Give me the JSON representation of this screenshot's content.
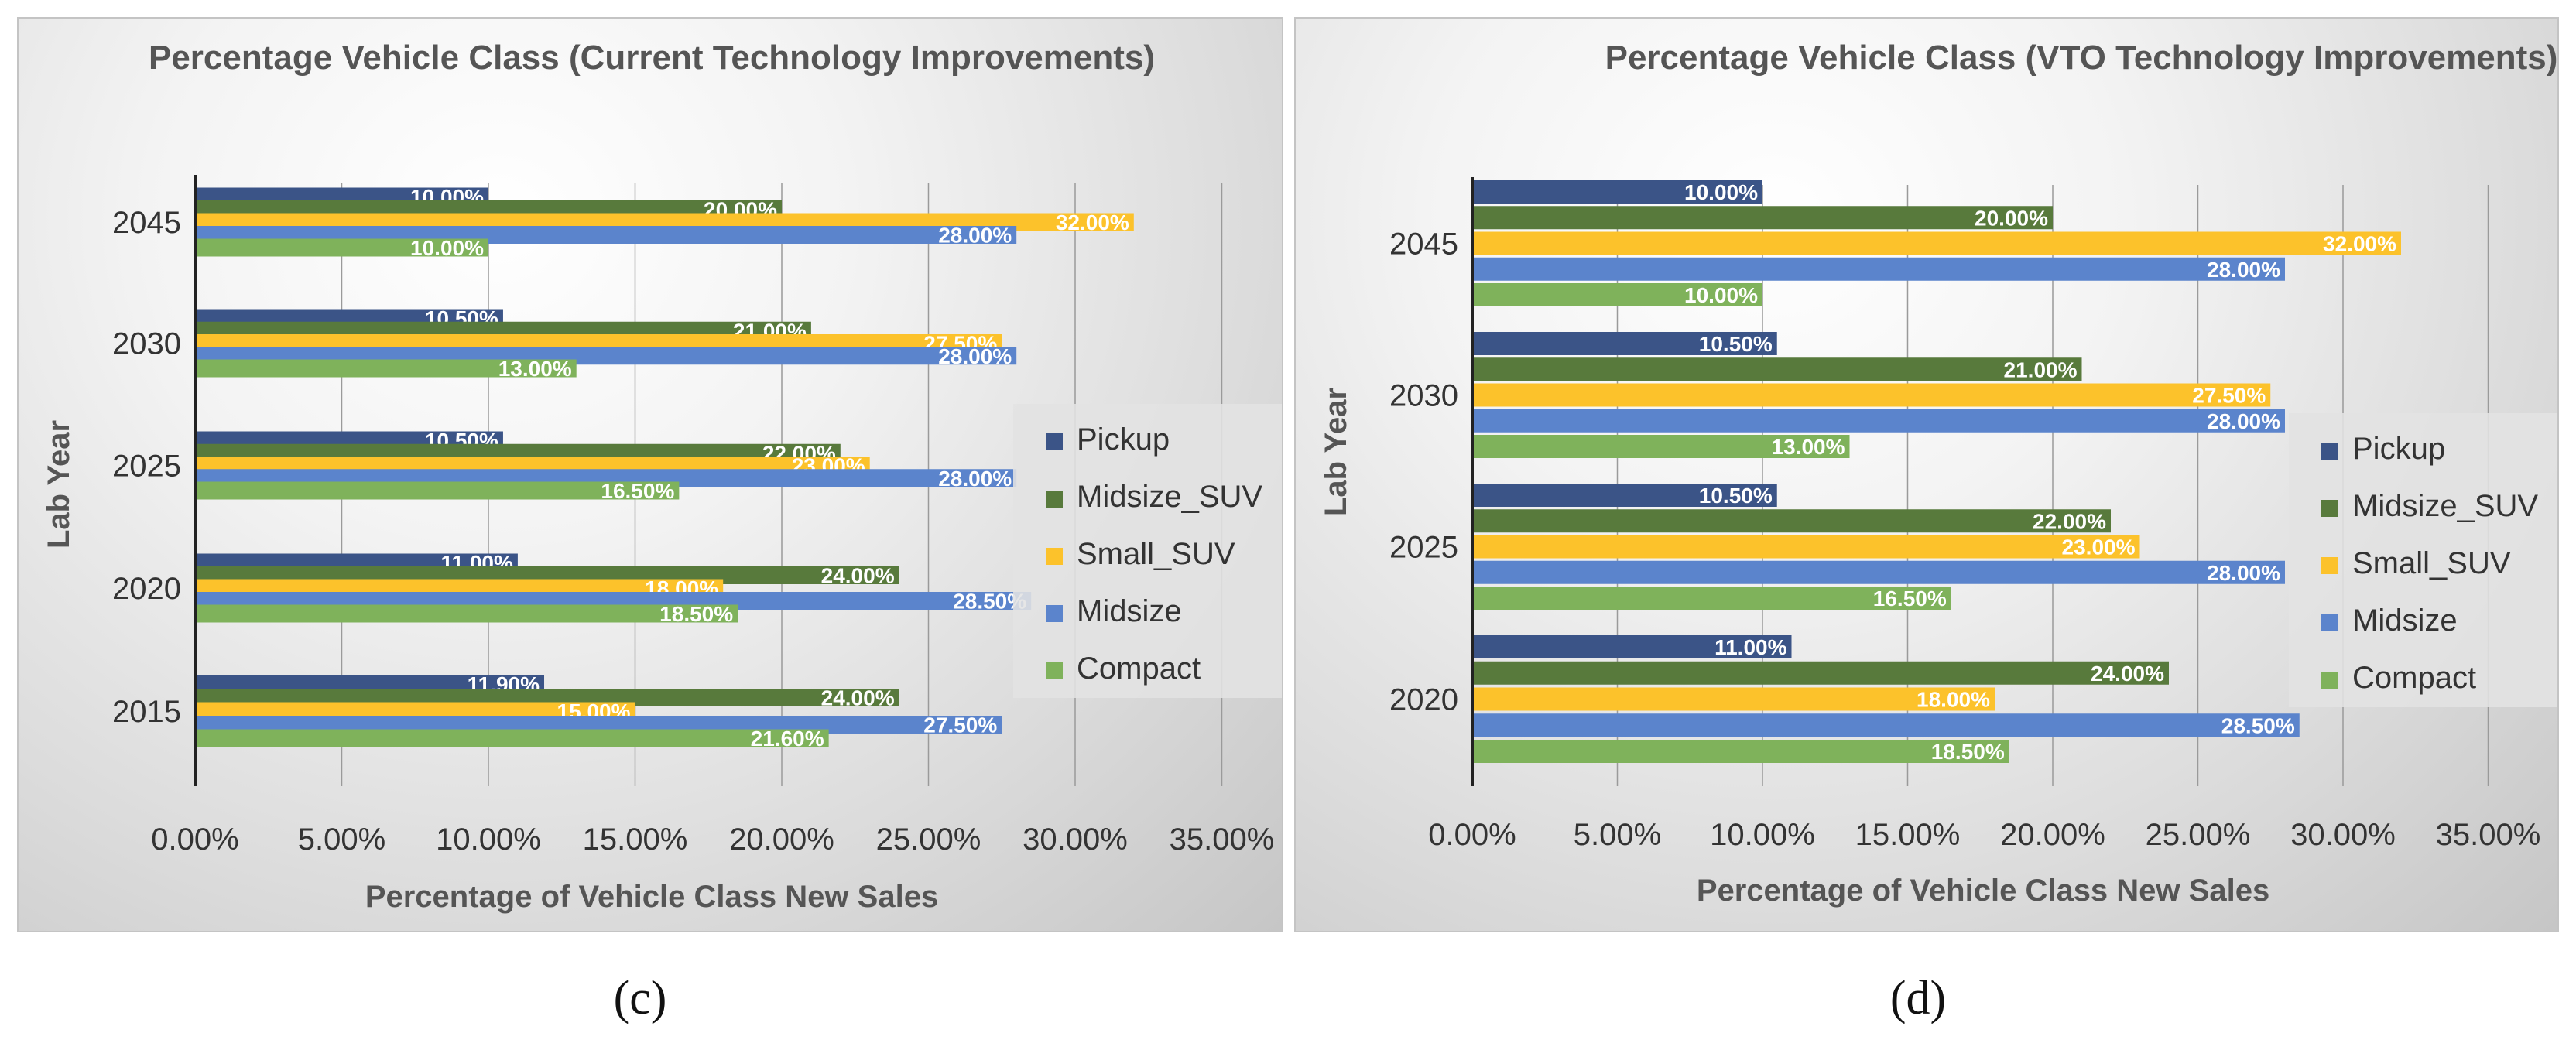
{
  "captions": [
    "(c)",
    "(d)"
  ],
  "colors": {
    "Pickup": "#3b5487",
    "Midsize_SUV": "#587a3c",
    "Small_SUV": "#fcc22b",
    "Midsize": "#5b84cc",
    "Compact": "#7fb25b"
  },
  "chart_data": [
    {
      "type": "bar",
      "orientation": "horizontal",
      "title": "Percentage Vehicle Class (Current Technology Improvements)",
      "xlabel": "Percentage of Vehicle Class New Sales",
      "ylabel": "Lab Year",
      "xlim": [
        0,
        35
      ],
      "xticks": [
        "0.00%",
        "5.00%",
        "10.00%",
        "15.00%",
        "20.00%",
        "25.00%",
        "30.00%",
        "35.00%"
      ],
      "grid": true,
      "legend_position": "right",
      "categories": [
        "2045",
        "2030",
        "2025",
        "2020",
        "2015"
      ],
      "series": [
        {
          "name": "Pickup",
          "values": [
            10.0,
            10.5,
            10.5,
            11.0,
            11.9
          ],
          "labels": [
            "10.00%",
            "10.50%",
            "10.50%",
            "11.00%",
            "11.90%"
          ]
        },
        {
          "name": "Midsize_SUV",
          "values": [
            20.0,
            21.0,
            22.0,
            24.0,
            24.0
          ],
          "labels": [
            "20.00%",
            "21.00%",
            "22.00%",
            "24.00%",
            "24.00%"
          ]
        },
        {
          "name": "Small_SUV",
          "values": [
            32.0,
            27.5,
            23.0,
            18.0,
            15.0
          ],
          "labels": [
            "32.00%",
            "27.50%",
            "23.00%",
            "18.00%",
            "15.00%"
          ]
        },
        {
          "name": "Midsize",
          "values": [
            28.0,
            28.0,
            28.0,
            28.5,
            27.5
          ],
          "labels": [
            "28.00%",
            "28.00%",
            "28.00%",
            "28.50%",
            "27.50%"
          ]
        },
        {
          "name": "Compact",
          "values": [
            10.0,
            13.0,
            16.5,
            18.5,
            21.6
          ],
          "labels": [
            "10.00%",
            "13.00%",
            "16.50%",
            "18.50%",
            "21.60%"
          ]
        }
      ]
    },
    {
      "type": "bar",
      "orientation": "horizontal",
      "title": "Percentage Vehicle Class (VTO Technology Improvements)",
      "xlabel": "Percentage of Vehicle Class New Sales",
      "ylabel": "Lab Year",
      "xlim": [
        0,
        35
      ],
      "xticks": [
        "0.00%",
        "5.00%",
        "10.00%",
        "15.00%",
        "20.00%",
        "25.00%",
        "30.00%",
        "35.00%"
      ],
      "grid": true,
      "legend_position": "right",
      "categories": [
        "2045",
        "2030",
        "2025",
        "2020"
      ],
      "series": [
        {
          "name": "Pickup",
          "values": [
            10.0,
            10.5,
            10.5,
            11.0
          ],
          "labels": [
            "10.00%",
            "10.50%",
            "10.50%",
            "11.00%"
          ]
        },
        {
          "name": "Midsize_SUV",
          "values": [
            20.0,
            21.0,
            22.0,
            24.0
          ],
          "labels": [
            "20.00%",
            "21.00%",
            "22.00%",
            "24.00%"
          ]
        },
        {
          "name": "Small_SUV",
          "values": [
            32.0,
            27.5,
            23.0,
            18.0
          ],
          "labels": [
            "32.00%",
            "27.50%",
            "23.00%",
            "18.00%"
          ]
        },
        {
          "name": "Midsize",
          "values": [
            28.0,
            28.0,
            28.0,
            28.5
          ],
          "labels": [
            "28.00%",
            "28.00%",
            "28.00%",
            "28.50%"
          ]
        },
        {
          "name": "Compact",
          "values": [
            10.0,
            13.0,
            16.5,
            18.5
          ],
          "labels": [
            "10.00%",
            "13.00%",
            "16.50%",
            "18.50%"
          ]
        }
      ]
    }
  ]
}
